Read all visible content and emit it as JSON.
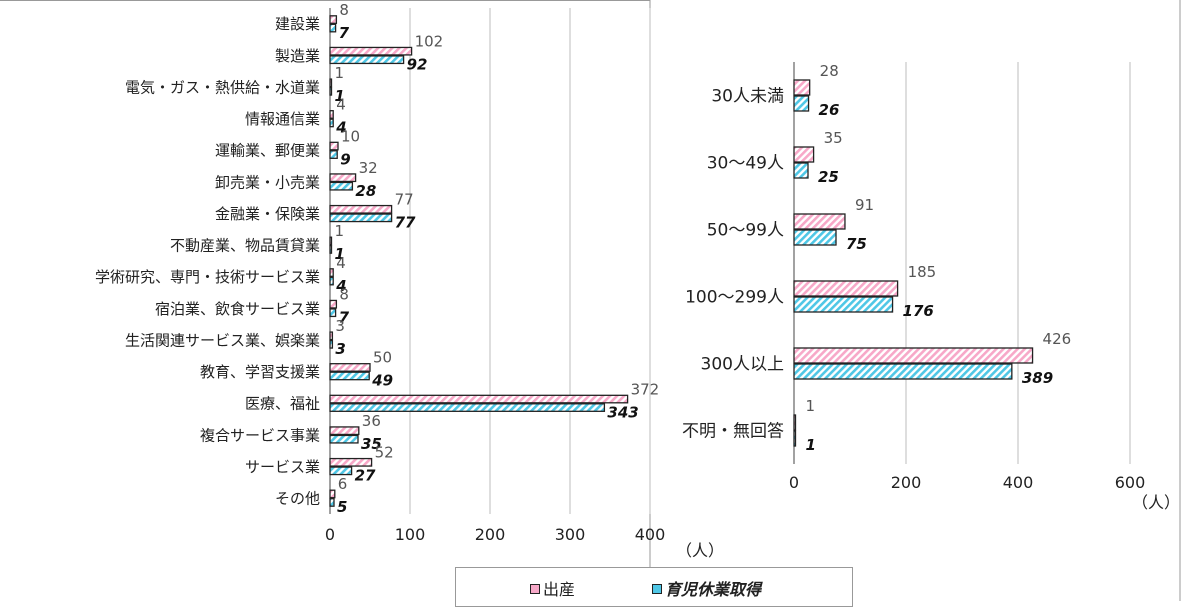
{
  "colors": {
    "birth": "#f7a8c8",
    "leave": "#4fc7e6",
    "outline": "#222222",
    "grid": "#bdbdbd"
  },
  "unit_label": "（人）",
  "legend": {
    "birth": "出産",
    "leave": "育児休業取得"
  },
  "chart_data": [
    {
      "type": "bar",
      "orientation": "horizontal",
      "categories": [
        "建設業",
        "製造業",
        "電気・ガス・熱供給・水道業",
        "情報通信業",
        "運輸業、郵便業",
        "卸売業・小売業",
        "金融業・保険業",
        "不動産業、物品賃貸業",
        "学術研究、専門・技術サービス業",
        "宿泊業、飲食サービス業",
        "生活関連サービス業、娯楽業",
        "教育、学習支援業",
        "医療、福祉",
        "複合サービス事業",
        "サービス業",
        "その他"
      ],
      "series": [
        {
          "name": "出産",
          "values": [
            8,
            102,
            1,
            4,
            10,
            32,
            77,
            1,
            4,
            8,
            3,
            50,
            372,
            36,
            52,
            6
          ]
        },
        {
          "name": "育児休業取得",
          "values": [
            7,
            92,
            1,
            4,
            9,
            28,
            77,
            1,
            4,
            7,
            3,
            49,
            343,
            35,
            27,
            5
          ]
        }
      ],
      "xlim": [
        0,
        400
      ],
      "xticks": [
        0,
        100,
        200,
        300,
        400
      ],
      "xlabel": "（人）",
      "grid": true
    },
    {
      "type": "bar",
      "orientation": "horizontal",
      "categories": [
        "30人未満",
        "30～49人",
        "50～99人",
        "100～299人",
        "300人以上",
        "不明・無回答"
      ],
      "series": [
        {
          "name": "出産",
          "values": [
            28,
            35,
            91,
            185,
            426,
            1
          ]
        },
        {
          "name": "育児休業取得",
          "values": [
            26,
            25,
            75,
            176,
            389,
            1
          ]
        }
      ],
      "xlim": [
        0,
        600
      ],
      "xticks": [
        0,
        200,
        400,
        600
      ],
      "xlabel": "（人）",
      "grid": true
    }
  ]
}
